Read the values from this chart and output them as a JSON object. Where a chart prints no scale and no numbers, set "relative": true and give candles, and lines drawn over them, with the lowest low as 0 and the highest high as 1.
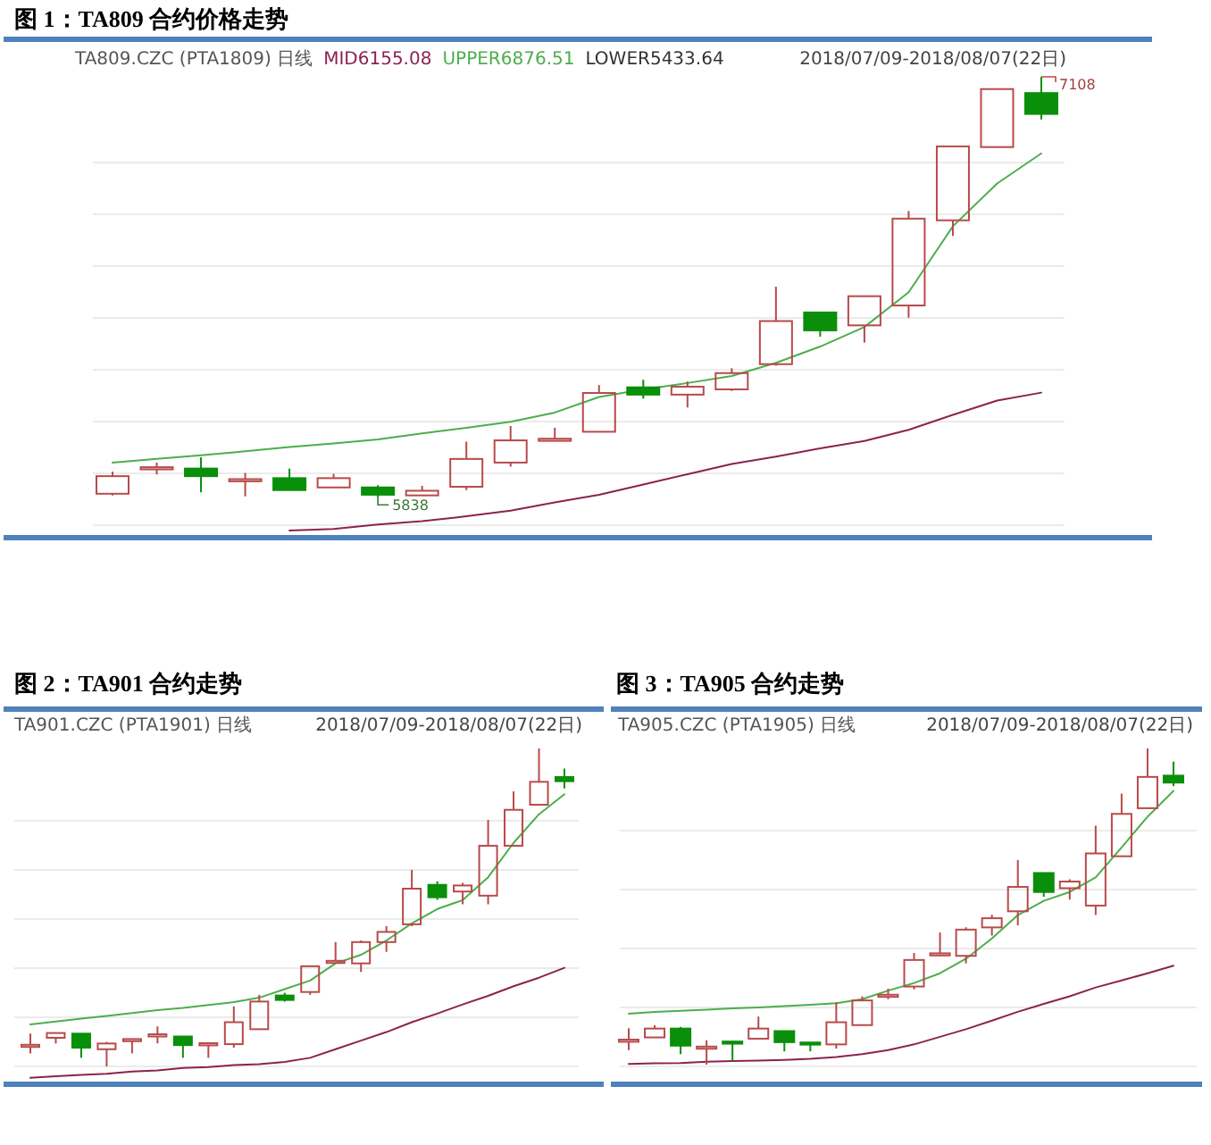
{
  "chart_data": [
    {
      "type": "candlestick",
      "title": "图 1：TA809 合约价格走势",
      "subtitle": "TA809.CZC (PTA1809) 日线",
      "categories": [
        null,
        null,
        null,
        null,
        null,
        null,
        null,
        null,
        null,
        null,
        null,
        null,
        null,
        null,
        null,
        null,
        null,
        null,
        null,
        null,
        null,
        null
      ],
      "ohlc": [
        [
          5850,
          5917,
          5845,
          5903
        ],
        [
          5924,
          5944,
          5908,
          5930
        ],
        [
          5926,
          5960,
          5854,
          5903
        ],
        [
          5892,
          5913,
          5842,
          5894
        ],
        [
          5897,
          5926,
          5859,
          5861
        ],
        [
          5869,
          5910,
          5866,
          5897
        ],
        [
          5869,
          5876,
          5838,
          5847
        ],
        [
          5845,
          5874,
          5843,
          5859
        ],
        [
          5871,
          6007,
          5861,
          5955
        ],
        [
          5944,
          6054,
          5932,
          6011
        ],
        [
          6014,
          6049,
          6011,
          6016
        ],
        [
          6037,
          6178,
          6034,
          6154
        ],
        [
          6171,
          6194,
          6137,
          6149
        ],
        [
          6149,
          6189,
          6110,
          6173
        ],
        [
          6165,
          6229,
          6160,
          6214
        ],
        [
          6241,
          6475,
          6236,
          6371
        ],
        [
          6397,
          6401,
          6324,
          6343
        ],
        [
          6358,
          6448,
          6306,
          6446
        ],
        [
          6418,
          6703,
          6381,
          6680
        ],
        [
          6675,
          6900,
          6628,
          6898
        ],
        [
          6896,
          7073,
          6893,
          7071
        ],
        [
          7059,
          7108,
          6979,
          6996
        ]
      ],
      "colors": [
        "#b84a4a",
        "#b84a4a",
        "#0a8f0a",
        "#b84a4a",
        "#0a8f0a",
        "#b84a4a",
        "#0a8f0a",
        "#b84a4a",
        "#b84a4a",
        "#b84a4a",
        "#b84a4a",
        "#b84a4a",
        "#0a8f0a",
        "#b84a4a",
        "#b84a4a",
        "#b84a4a",
        "#0a8f0a",
        "#b84a4a",
        "#b84a4a",
        "#b84a4a",
        "#b84a4a",
        "#0a8f0a"
      ],
      "series": [
        {
          "name": "MID6155.08",
          "type": "line",
          "color": "#8b2252",
          "values": [
            null,
            null,
            null,
            null,
            5739,
            5744,
            5757,
            5767,
            5782,
            5799,
            5824,
            5847,
            5878,
            5909,
            5940,
            5962,
            5987,
            6009,
            6043,
            6088,
            6131,
            6155
          ]
        },
        {
          "name": "UPPER6876.51",
          "type": "line",
          "color": "#4cae4c",
          "values": [
            5944,
            5955,
            5966,
            5978,
            5991,
            6002,
            6014,
            6032,
            6049,
            6067,
            6095,
            6142,
            6165,
            6184,
            6205,
            6245,
            6294,
            6353,
            6458,
            6657,
            6786,
            6877
          ]
        },
        {
          "name": "LOWER5433.64",
          "type": "line",
          "color": "#333333",
          "values": [
            null,
            null,
            null,
            null,
            null,
            null,
            null,
            null,
            null,
            null,
            null,
            null,
            null,
            null,
            null,
            null,
            null,
            null,
            null,
            null,
            null,
            null
          ]
        }
      ],
      "annotations": [
        "2018/07/09-2018/08/07(22日)",
        {
          "text": "5838",
          "y": 5838
        },
        "7108"
      ],
      "grid": "y",
      "legend": "top left"
    },
    {
      "type": "candlestick",
      "title": "图 2：TA901 合约走势",
      "subtitle": "TA901.CZC (PTA1901) 日线",
      "relative": true,
      "categories": [
        null,
        null,
        null,
        null,
        null,
        null,
        null,
        null,
        null,
        null,
        null,
        null,
        null,
        null,
        null,
        null,
        null,
        null,
        null,
        null,
        null,
        null
      ],
      "ohlc": [
        [
          0.067,
          0.103,
          0.041,
          0.068
        ],
        [
          0.09,
          0.108,
          0.072,
          0.105
        ],
        [
          0.103,
          0.106,
          0.027,
          0.059
        ],
        [
          0.054,
          0.077,
          0,
          0.072
        ],
        [
          0.085,
          0.09,
          0.041,
          0.086
        ],
        [
          0.094,
          0.126,
          0.072,
          0.101
        ],
        [
          0.094,
          0.095,
          0.027,
          0.067
        ],
        [
          0.072,
          0.076,
          0.027,
          0.073
        ],
        [
          0.07,
          0.189,
          0.059,
          0.139
        ],
        [
          0.117,
          0.225,
          0.115,
          0.204
        ],
        [
          0.223,
          0.232,
          0.204,
          0.209
        ],
        [
          0.234,
          0.319,
          0.225,
          0.315
        ],
        [
          0.328,
          0.391,
          0.323,
          0.332
        ],
        [
          0.324,
          0.396,
          0.297,
          0.391
        ],
        [
          0.391,
          0.441,
          0.36,
          0.423
        ],
        [
          0.447,
          0.618,
          0.441,
          0.559
        ],
        [
          0.571,
          0.582,
          0.524,
          0.532
        ],
        [
          0.55,
          0.577,
          0.51,
          0.569
        ],
        [
          0.537,
          0.775,
          0.51,
          0.694
        ],
        [
          0.694,
          0.865,
          0.69,
          0.807
        ],
        [
          0.823,
          1,
          0.82,
          0.895
        ],
        [
          0.91,
          0.937,
          0.874,
          0.897
        ]
      ],
      "colors": [
        "#b84a4a",
        "#b84a4a",
        "#0a8f0a",
        "#b84a4a",
        "#b84a4a",
        "#b84a4a",
        "#0a8f0a",
        "#b84a4a",
        "#b84a4a",
        "#b84a4a",
        "#0a8f0a",
        "#b84a4a",
        "#b84a4a",
        "#b84a4a",
        "#b84a4a",
        "#b84a4a",
        "#0a8f0a",
        "#b84a4a",
        "#b84a4a",
        "#b84a4a",
        "#b84a4a",
        "#0a8f0a"
      ],
      "series": [
        {
          "type": "line",
          "color": "#8b2252",
          "values": [
            -0.036,
            -0.031,
            -0.027,
            -0.023,
            -0.016,
            -0.013,
            -0.005,
            -0.002,
            0.004,
            0.007,
            0.014,
            0.027,
            0.054,
            0.081,
            0.108,
            0.139,
            0.166,
            0.195,
            0.222,
            0.252,
            0.279,
            0.31
          ]
        },
        {
          "type": "line",
          "color": "#4cae4c",
          "values": [
            0.132,
            0.141,
            0.15,
            0.159,
            0.168,
            0.177,
            0.184,
            0.193,
            0.202,
            0.216,
            0.243,
            0.27,
            0.324,
            0.351,
            0.396,
            0.45,
            0.495,
            0.523,
            0.595,
            0.703,
            0.793,
            0.856
          ]
        }
      ],
      "annotations": [
        "2018/07/09-2018/08/07(22日)"
      ],
      "grid": "y"
    },
    {
      "type": "candlestick",
      "title": "图 3：TA905 合约走势",
      "subtitle": "TA905.CZC (PTA1905) 日线",
      "relative": true,
      "categories": [
        null,
        null,
        null,
        null,
        null,
        null,
        null,
        null,
        null,
        null,
        null,
        null,
        null,
        null,
        null,
        null,
        null,
        null,
        null,
        null,
        null,
        null
      ],
      "ohlc": [
        [
          0.077,
          0.115,
          0.046,
          0.079
        ],
        [
          0.086,
          0.125,
          0.084,
          0.114
        ],
        [
          0.114,
          0.119,
          0.033,
          0.06
        ],
        [
          0.055,
          0.077,
          0,
          0.057
        ],
        [
          0.073,
          0.075,
          0.011,
          0.07
        ],
        [
          0.082,
          0.152,
          0.079,
          0.114
        ],
        [
          0.106,
          0.108,
          0.042,
          0.071
        ],
        [
          0.07,
          0.071,
          0.042,
          0.066
        ],
        [
          0.064,
          0.198,
          0.051,
          0.134
        ],
        [
          0.125,
          0.216,
          0.121,
          0.203
        ],
        [
          0.218,
          0.24,
          0.207,
          0.221
        ],
        [
          0.247,
          0.353,
          0.238,
          0.331
        ],
        [
          0.348,
          0.418,
          0.343,
          0.352
        ],
        [
          0.344,
          0.434,
          0.32,
          0.427
        ],
        [
          0.434,
          0.474,
          0.408,
          0.463
        ],
        [
          0.485,
          0.647,
          0.441,
          0.562
        ],
        [
          0.606,
          0.61,
          0.531,
          0.546
        ],
        [
          0.558,
          0.586,
          0.522,
          0.579
        ],
        [
          0.503,
          0.756,
          0.473,
          0.668
        ],
        [
          0.659,
          0.857,
          0.656,
          0.793
        ],
        [
          0.811,
          1,
          0.808,
          0.91
        ],
        [
          0.914,
          0.958,
          0.881,
          0.892
        ]
      ],
      "colors": [
        "#b84a4a",
        "#b84a4a",
        "#0a8f0a",
        "#b84a4a",
        "#0a8f0a",
        "#b84a4a",
        "#0a8f0a",
        "#0a8f0a",
        "#b84a4a",
        "#b84a4a",
        "#b84a4a",
        "#b84a4a",
        "#b84a4a",
        "#b84a4a",
        "#b84a4a",
        "#b84a4a",
        "#0a8f0a",
        "#b84a4a",
        "#b84a4a",
        "#b84a4a",
        "#b84a4a",
        "#0a8f0a"
      ],
      "series": [
        {
          "type": "line",
          "color": "#8b2252",
          "values": [
            0.002,
            0.004,
            0.005,
            0.009,
            0.011,
            0.013,
            0.015,
            0.018,
            0.024,
            0.033,
            0.046,
            0.064,
            0.088,
            0.112,
            0.139,
            0.167,
            0.192,
            0.216,
            0.244,
            0.266,
            0.289,
            0.313
          ]
        },
        {
          "type": "line",
          "color": "#4cae4c",
          "values": [
            0.161,
            0.167,
            0.17,
            0.174,
            0.178,
            0.181,
            0.185,
            0.189,
            0.194,
            0.207,
            0.234,
            0.258,
            0.289,
            0.335,
            0.399,
            0.473,
            0.518,
            0.546,
            0.592,
            0.687,
            0.784,
            0.866
          ]
        }
      ],
      "annotations": [
        "2018/07/09-2018/08/07(22日)"
      ],
      "grid": "y"
    }
  ]
}
